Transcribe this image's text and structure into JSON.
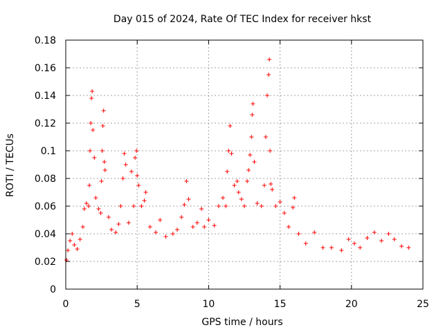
{
  "chart_data": {
    "type": "scatter",
    "title": "Day 015 of 2024, Rate Of TEC Index for receiver hkst",
    "xlabel": "GPS time / hours",
    "ylabel": "ROTI / TECUs",
    "xlim": [
      0,
      25
    ],
    "ylim": [
      0,
      0.18
    ],
    "xticks": [
      0,
      5,
      10,
      15,
      20,
      25
    ],
    "yticks": [
      0,
      0.02,
      0.04,
      0.06,
      0.08,
      0.1,
      0.12,
      0.14,
      0.16,
      0.18
    ],
    "xtick_labels": [
      "0",
      "5",
      "10",
      "15",
      "20",
      "25"
    ],
    "ytick_labels": [
      "0",
      "0.02",
      "0.04",
      "0.06",
      "0.08",
      "0.1",
      "0.12",
      "0.14",
      "0.16",
      "0.18"
    ],
    "grid": true,
    "marker": "+",
    "color": "#ff0000",
    "series": [
      {
        "name": "ROTI",
        "points": [
          [
            0.05,
            0.021
          ],
          [
            0.15,
            0.028
          ],
          [
            0.3,
            0.035
          ],
          [
            0.45,
            0.04
          ],
          [
            0.6,
            0.032
          ],
          [
            0.8,
            0.029
          ],
          [
            1.0,
            0.036
          ],
          [
            1.2,
            0.045
          ],
          [
            1.3,
            0.058
          ],
          [
            1.45,
            0.062
          ],
          [
            1.6,
            0.06
          ],
          [
            1.65,
            0.075
          ],
          [
            1.7,
            0.1
          ],
          [
            1.75,
            0.12
          ],
          [
            1.8,
            0.138
          ],
          [
            1.85,
            0.143
          ],
          [
            1.9,
            0.115
          ],
          [
            2.0,
            0.095
          ],
          [
            2.1,
            0.066
          ],
          [
            2.3,
            0.058
          ],
          [
            2.45,
            0.055
          ],
          [
            2.5,
            0.078
          ],
          [
            2.55,
            0.1
          ],
          [
            2.6,
            0.118
          ],
          [
            2.65,
            0.129
          ],
          [
            2.7,
            0.092
          ],
          [
            2.75,
            0.086
          ],
          [
            3.0,
            0.052
          ],
          [
            3.2,
            0.043
          ],
          [
            3.5,
            0.041
          ],
          [
            3.7,
            0.047
          ],
          [
            3.85,
            0.06
          ],
          [
            4.0,
            0.08
          ],
          [
            4.1,
            0.098
          ],
          [
            4.2,
            0.09
          ],
          [
            4.4,
            0.048
          ],
          [
            4.6,
            0.085
          ],
          [
            4.75,
            0.06
          ],
          [
            4.85,
            0.095
          ],
          [
            4.95,
            0.1
          ],
          [
            5.0,
            0.082
          ],
          [
            5.1,
            0.075
          ],
          [
            5.3,
            0.06
          ],
          [
            5.5,
            0.064
          ],
          [
            5.6,
            0.07
          ],
          [
            5.9,
            0.045
          ],
          [
            6.3,
            0.041
          ],
          [
            6.6,
            0.05
          ],
          [
            7.0,
            0.038
          ],
          [
            7.5,
            0.04
          ],
          [
            7.8,
            0.043
          ],
          [
            8.1,
            0.052
          ],
          [
            8.3,
            0.061
          ],
          [
            8.45,
            0.078
          ],
          [
            8.6,
            0.065
          ],
          [
            8.9,
            0.045
          ],
          [
            9.2,
            0.048
          ],
          [
            9.5,
            0.058
          ],
          [
            9.7,
            0.045
          ],
          [
            10.0,
            0.05
          ],
          [
            10.4,
            0.046
          ],
          [
            10.7,
            0.06
          ],
          [
            11.0,
            0.066
          ],
          [
            11.2,
            0.06
          ],
          [
            11.3,
            0.085
          ],
          [
            11.4,
            0.1
          ],
          [
            11.5,
            0.118
          ],
          [
            11.6,
            0.098
          ],
          [
            11.8,
            0.075
          ],
          [
            12.0,
            0.078
          ],
          [
            12.1,
            0.07
          ],
          [
            12.3,
            0.065
          ],
          [
            12.5,
            0.06
          ],
          [
            12.7,
            0.078
          ],
          [
            12.8,
            0.086
          ],
          [
            12.9,
            0.097
          ],
          [
            13.0,
            0.11
          ],
          [
            13.05,
            0.126
          ],
          [
            13.1,
            0.134
          ],
          [
            13.2,
            0.092
          ],
          [
            13.4,
            0.062
          ],
          [
            13.7,
            0.06
          ],
          [
            13.9,
            0.075
          ],
          [
            14.0,
            0.11
          ],
          [
            14.1,
            0.14
          ],
          [
            14.2,
            0.155
          ],
          [
            14.25,
            0.166
          ],
          [
            14.3,
            0.1
          ],
          [
            14.35,
            0.076
          ],
          [
            14.45,
            0.072
          ],
          [
            14.7,
            0.06
          ],
          [
            15.0,
            0.063
          ],
          [
            15.3,
            0.055
          ],
          [
            15.6,
            0.045
          ],
          [
            15.9,
            0.059
          ],
          [
            16.0,
            0.066
          ],
          [
            16.3,
            0.04
          ],
          [
            16.8,
            0.033
          ],
          [
            17.4,
            0.041
          ],
          [
            18.0,
            0.03
          ],
          [
            18.6,
            0.03
          ],
          [
            19.3,
            0.028
          ],
          [
            19.8,
            0.036
          ],
          [
            20.2,
            0.033
          ],
          [
            20.6,
            0.03
          ],
          [
            21.1,
            0.037
          ],
          [
            21.6,
            0.041
          ],
          [
            22.1,
            0.035
          ],
          [
            22.6,
            0.04
          ],
          [
            23.0,
            0.036
          ],
          [
            23.5,
            0.031
          ],
          [
            24.0,
            0.03
          ]
        ]
      }
    ]
  }
}
